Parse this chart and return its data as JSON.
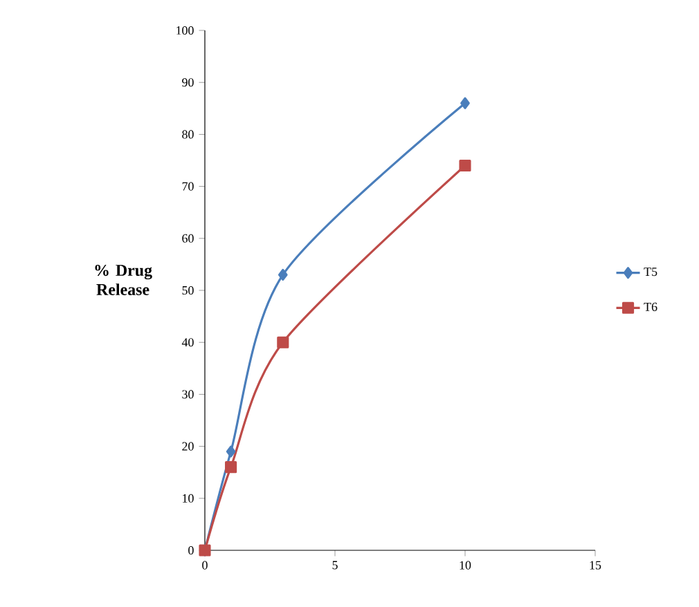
{
  "chart_data": {
    "type": "line",
    "ylabel": "% Drug Release",
    "x": [
      0,
      1,
      3,
      10
    ],
    "series": [
      {
        "name": "T5",
        "color": "#4a7ebb",
        "marker": "diamond",
        "values": [
          0,
          19,
          53,
          86
        ]
      },
      {
        "name": "T6",
        "color": "#be4b48",
        "marker": "square",
        "values": [
          0,
          16,
          40,
          74
        ]
      }
    ],
    "xlim": [
      0,
      15
    ],
    "xticks": [
      0,
      5,
      10,
      15
    ],
    "ylim": [
      0,
      100
    ],
    "yticks": [
      0,
      10,
      20,
      30,
      40,
      50,
      60,
      70,
      80,
      90,
      100
    ],
    "grid": false,
    "legend": "right",
    "line_style": "solid"
  }
}
